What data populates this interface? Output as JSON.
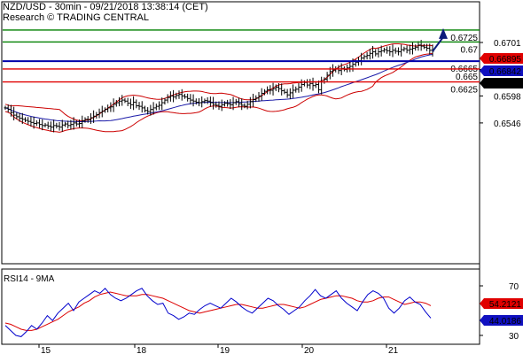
{
  "header": {
    "title": "NZD/USD - 30min - 09/21/2018 13:38:14 (CET)",
    "subtitle": "Research © TRADING CENTRAL"
  },
  "colors": {
    "candle": "#000000",
    "bollinger": "#cc0000",
    "moving_average": "#1a1aa8",
    "target_line": "#008000",
    "pivot_line": "#0000aa",
    "support_line": "#e00000",
    "arrow": "#0b1a7a",
    "price_tag_red": "#e00000",
    "price_tag_blue": "#1010c0",
    "price_tag_black": "#000000",
    "rsi_line": "#0000cc",
    "rsi_ma": "#dd0000"
  },
  "chart_data": [
    {
      "type": "candlestick",
      "title": "NZD/USD - 30min - 09/21/2018 13:38:14 (CET)",
      "y_ticks": [
        "0.6701",
        "0.6649",
        "0.6598",
        "0.6546"
      ],
      "ylim": [
        0.652,
        0.676
      ],
      "x_ticks": [
        "15",
        "18",
        "19",
        "20",
        "21"
      ],
      "close_series": [
        0.6575,
        0.6572,
        0.6566,
        0.6561,
        0.6558,
        0.6555,
        0.6553,
        0.6551,
        0.6549,
        0.6547,
        0.6545,
        0.6546,
        0.6543,
        0.6541,
        0.6542,
        0.654,
        0.6538,
        0.6541,
        0.654,
        0.6538,
        0.6542,
        0.6544,
        0.6541,
        0.6543,
        0.6546,
        0.6544,
        0.6545,
        0.655,
        0.6553,
        0.6552,
        0.6556,
        0.6559,
        0.6562,
        0.6566,
        0.6569,
        0.6572,
        0.6575,
        0.6577,
        0.6582,
        0.6585,
        0.6588,
        0.659,
        0.6588,
        0.6584,
        0.6581,
        0.6586,
        0.6579,
        0.6578,
        0.6575,
        0.657,
        0.6568,
        0.6572,
        0.6575,
        0.6578,
        0.658,
        0.6585,
        0.659,
        0.6595,
        0.6598,
        0.6596,
        0.6599,
        0.6601,
        0.6598,
        0.6596,
        0.6593,
        0.659,
        0.6588,
        0.6586,
        0.6585,
        0.6587,
        0.6589,
        0.6588,
        0.6585,
        0.6582,
        0.658,
        0.6578,
        0.6581,
        0.6584,
        0.6583,
        0.6581,
        0.6585,
        0.6587,
        0.6583,
        0.658,
        0.6578,
        0.6582,
        0.6587,
        0.6591,
        0.6594,
        0.6598,
        0.6603,
        0.6607,
        0.661,
        0.6609,
        0.6612,
        0.6615,
        0.6612,
        0.6608,
        0.6605,
        0.66,
        0.6604,
        0.6609,
        0.6611,
        0.6615,
        0.662,
        0.6624,
        0.6619,
        0.6622,
        0.6618,
        0.662,
        0.661,
        0.6625,
        0.663,
        0.6638,
        0.6645,
        0.6648,
        0.665,
        0.6647,
        0.6651,
        0.6649,
        0.6652,
        0.6655,
        0.6659,
        0.6663,
        0.6666,
        0.6671,
        0.6674,
        0.6676,
        0.668,
        0.6683,
        0.6679,
        0.6683,
        0.6685,
        0.6687,
        0.6685,
        0.6683,
        0.6686,
        0.6684,
        0.6683,
        0.6687,
        0.6689,
        0.6686,
        0.6688,
        0.669,
        0.6692,
        0.6696,
        0.6694,
        0.6692,
        0.669,
        0.6686,
        0.6684
      ],
      "indicators": {
        "bollinger_bands": "20-period bands (upper/lower)",
        "moving_average": "blue trend line"
      },
      "horizontal_levels": [
        {
          "label": "0.6725",
          "value": 0.6725,
          "kind": "target"
        },
        {
          "label": "0.67",
          "value": 0.6702,
          "kind": "target"
        },
        {
          "label": "0.6665",
          "value": 0.6665,
          "kind": "pivot"
        },
        {
          "label": "0.665",
          "value": 0.665,
          "kind": "support"
        },
        {
          "label": "0.6625",
          "value": 0.6625,
          "kind": "support"
        }
      ],
      "price_tags": [
        {
          "label": "0.66895",
          "value": 0.66895,
          "style": "red"
        },
        {
          "label": "0.66842",
          "value": 0.66842,
          "style": "blue"
        },
        {
          "label": "0.6683",
          "value": 0.6683,
          "style": "black"
        }
      ],
      "arrow": {
        "from": 0.6684,
        "to": 0.6725,
        "direction": "up"
      }
    },
    {
      "type": "line",
      "title": "RSI14 - 9MA",
      "y_ticks": [
        "70",
        "30"
      ],
      "ylim": [
        20,
        85
      ],
      "x_ticks": [
        "15",
        "18",
        "19",
        "20",
        "21"
      ],
      "series": [
        {
          "name": "RSI14",
          "values": [
            38,
            34,
            30,
            29,
            33,
            38,
            35,
            40,
            46,
            42,
            48,
            52,
            56,
            50,
            57,
            60,
            63,
            66,
            64,
            68,
            63,
            60,
            58,
            60,
            63,
            66,
            68,
            62,
            58,
            55,
            56,
            48,
            46,
            43,
            45,
            48,
            47,
            51,
            54,
            56,
            54,
            52,
            56,
            60,
            57,
            53,
            50,
            48,
            52,
            56,
            60,
            58,
            54,
            51,
            47,
            50,
            53,
            58,
            62,
            67,
            62,
            60,
            63,
            66,
            60,
            56,
            53,
            50,
            57,
            63,
            66,
            64,
            60,
            52,
            48,
            52,
            58,
            61,
            57,
            55,
            49,
            44
          ]
        },
        {
          "name": "9MA",
          "values": [
            40,
            39,
            37,
            35,
            34,
            34,
            35,
            37,
            39,
            41,
            43,
            46,
            49,
            51,
            53,
            56,
            58,
            61,
            63,
            64,
            65,
            64,
            63,
            62,
            62,
            62,
            63,
            63,
            62,
            61,
            60,
            58,
            56,
            54,
            52,
            50,
            49,
            48,
            49,
            50,
            51,
            52,
            53,
            54,
            55,
            55,
            54,
            53,
            52,
            52,
            53,
            54,
            55,
            55,
            54,
            53,
            52,
            53,
            55,
            57,
            59,
            60,
            61,
            62,
            62,
            61,
            60,
            58,
            57,
            57,
            58,
            60,
            61,
            61,
            59,
            57,
            55,
            56,
            57,
            57,
            56,
            54
          ]
        }
      ],
      "last_values": [
        {
          "label": "54.2121",
          "value": 54.2121,
          "style": "red"
        },
        {
          "label": "44.0186",
          "value": 44.0186,
          "style": "blue"
        }
      ]
    }
  ]
}
